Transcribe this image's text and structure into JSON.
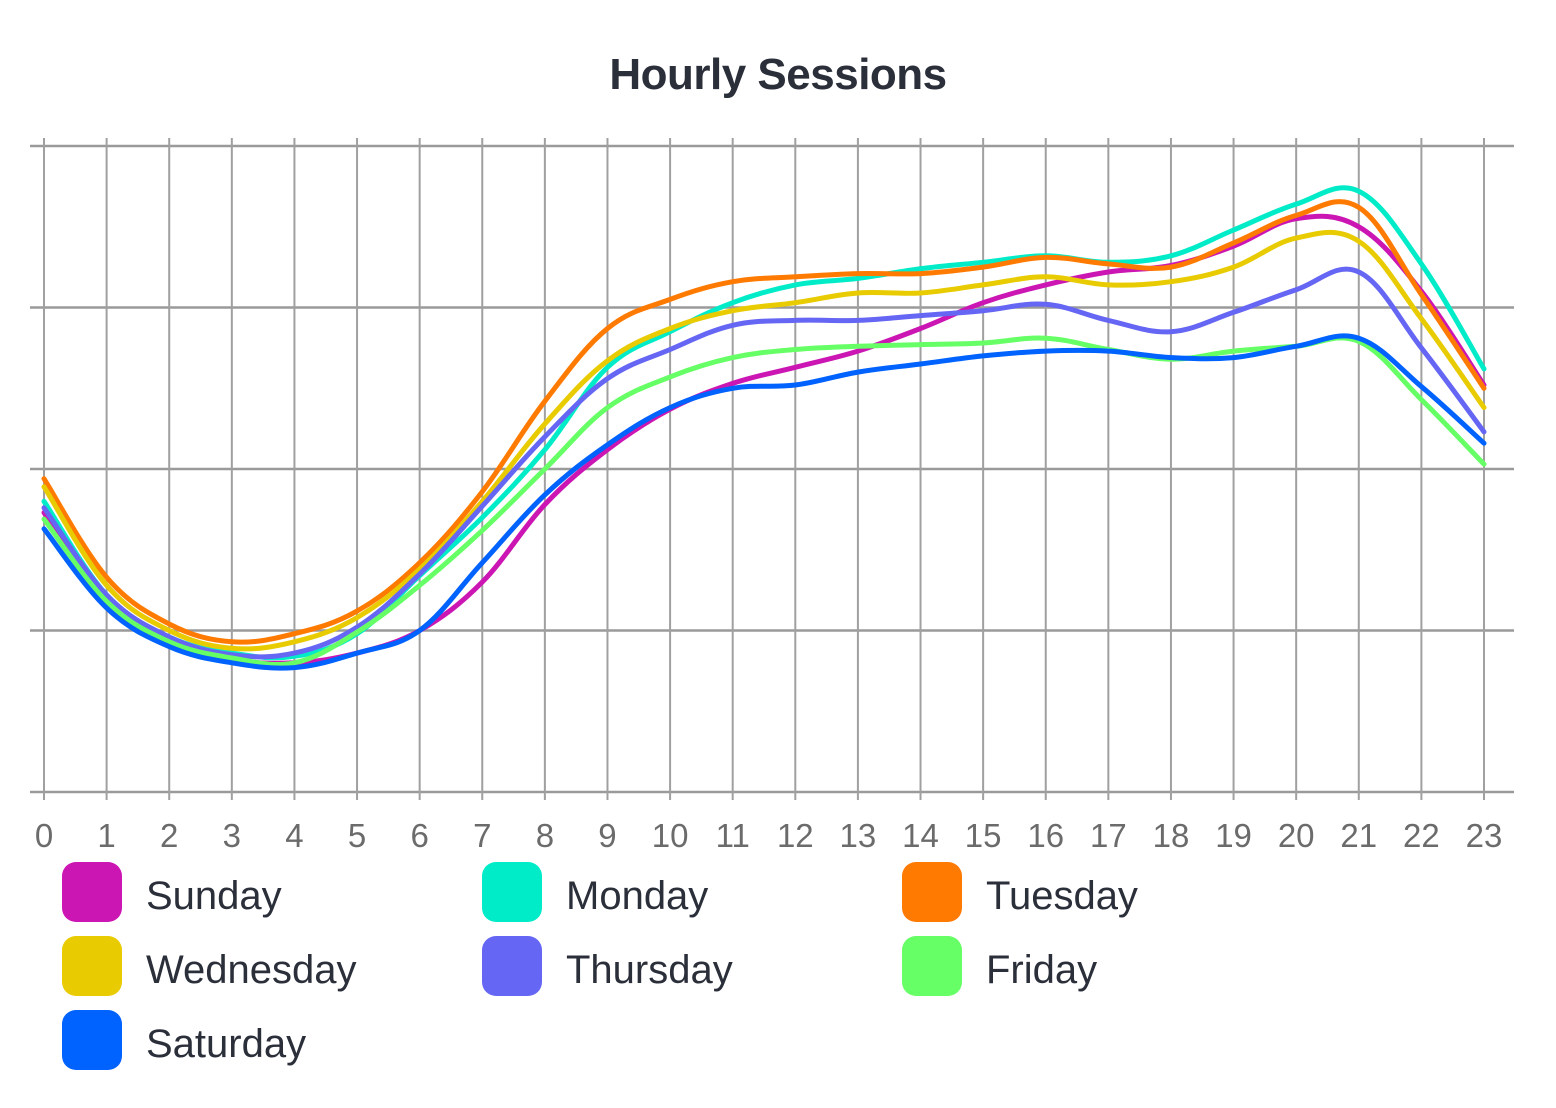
{
  "chart_data": {
    "type": "line",
    "title": "Hourly Sessions",
    "xlabel": "",
    "ylabel": "",
    "x": [
      0,
      1,
      2,
      3,
      4,
      5,
      6,
      7,
      8,
      9,
      10,
      11,
      12,
      13,
      14,
      15,
      16,
      17,
      18,
      19,
      20,
      21,
      22,
      23
    ],
    "x_tick_labels": [
      "0",
      "1",
      "2",
      "3",
      "4",
      "5",
      "6",
      "7",
      "8",
      "9",
      "10",
      "11",
      "12",
      "13",
      "14",
      "15",
      "16",
      "17",
      "18",
      "19",
      "20",
      "21",
      "22",
      "23"
    ],
    "ylim": [
      0,
      4
    ],
    "y_gridlines": [
      0,
      1,
      2,
      3,
      4
    ],
    "y_tick_labels_visible": false,
    "grid": true,
    "legend_position": "bottom",
    "series": [
      {
        "name": "Sunday",
        "color": "#cc16b4",
        "values": [
          1.73,
          1.18,
          0.92,
          0.82,
          0.8,
          0.86,
          1.0,
          1.3,
          1.78,
          2.12,
          2.37,
          2.53,
          2.63,
          2.73,
          2.87,
          3.03,
          3.14,
          3.22,
          3.26,
          3.38,
          3.55,
          3.5,
          3.1,
          2.52
        ]
      },
      {
        "name": "Monday",
        "color": "#00ecc8",
        "values": [
          1.8,
          1.22,
          0.96,
          0.86,
          0.84,
          0.98,
          1.34,
          1.7,
          2.12,
          2.63,
          2.85,
          3.03,
          3.14,
          3.18,
          3.24,
          3.28,
          3.32,
          3.28,
          3.32,
          3.48,
          3.64,
          3.72,
          3.27,
          2.62
        ]
      },
      {
        "name": "Tuesday",
        "color": "#ff7a00",
        "values": [
          1.94,
          1.33,
          1.04,
          0.93,
          0.98,
          1.12,
          1.42,
          1.86,
          2.42,
          2.87,
          3.05,
          3.16,
          3.19,
          3.21,
          3.21,
          3.25,
          3.31,
          3.27,
          3.25,
          3.4,
          3.57,
          3.62,
          3.08,
          2.5
        ]
      },
      {
        "name": "Wednesday",
        "color": "#e8cb00",
        "values": [
          1.89,
          1.28,
          1.0,
          0.89,
          0.93,
          1.08,
          1.38,
          1.8,
          2.28,
          2.67,
          2.87,
          2.98,
          3.03,
          3.09,
          3.09,
          3.14,
          3.19,
          3.14,
          3.16,
          3.25,
          3.43,
          3.41,
          2.93,
          2.38
        ]
      },
      {
        "name": "Thursday",
        "color": "#6666f4",
        "values": [
          1.76,
          1.22,
          0.96,
          0.85,
          0.86,
          1.02,
          1.35,
          1.77,
          2.2,
          2.56,
          2.74,
          2.89,
          2.92,
          2.92,
          2.95,
          2.98,
          3.02,
          2.92,
          2.85,
          2.97,
          3.11,
          3.22,
          2.75,
          2.23
        ]
      },
      {
        "name": "Friday",
        "color": "#66ff66",
        "values": [
          1.69,
          1.18,
          0.93,
          0.83,
          0.8,
          0.99,
          1.28,
          1.62,
          2.0,
          2.38,
          2.57,
          2.69,
          2.74,
          2.76,
          2.77,
          2.78,
          2.81,
          2.74,
          2.68,
          2.73,
          2.76,
          2.79,
          2.43,
          2.03
        ]
      },
      {
        "name": "Saturday",
        "color": "#0062ff",
        "values": [
          1.63,
          1.14,
          0.9,
          0.8,
          0.77,
          0.86,
          1.0,
          1.42,
          1.84,
          2.15,
          2.38,
          2.5,
          2.52,
          2.6,
          2.65,
          2.7,
          2.73,
          2.73,
          2.69,
          2.69,
          2.76,
          2.81,
          2.51,
          2.16
        ]
      }
    ]
  }
}
